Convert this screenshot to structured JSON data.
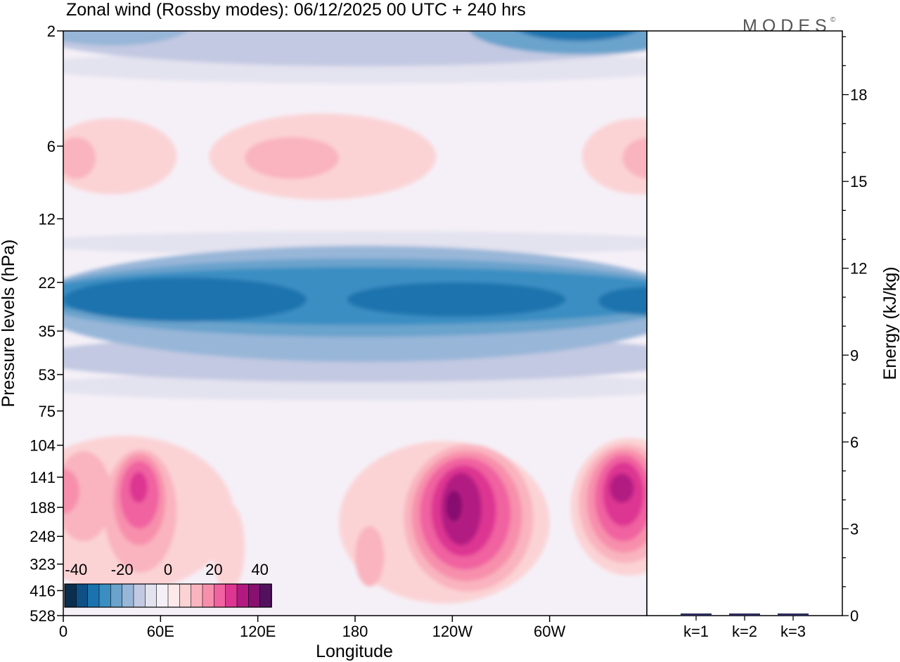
{
  "chart_data": {
    "type": "heatmap",
    "title": "Zonal wind (Rossby modes):  06/12/2025  00 UTC  + 240 hrs",
    "watermark": "MODES",
    "watermark_mark": "©",
    "xlabel": "Longitude",
    "ylabel": "Pressure levels (hPa)",
    "y2label": "Energy (kJ/kg)",
    "x_ticks": [
      "0",
      "60E",
      "120E",
      "180",
      "120W",
      "60W"
    ],
    "x_tick_deg": [
      0,
      60,
      120,
      180,
      240,
      300
    ],
    "x_range_deg": [
      0,
      360
    ],
    "y_ticks": [
      "2",
      "6",
      "12",
      "22",
      "35",
      "53",
      "75",
      "104",
      "141",
      "188",
      "248",
      "323",
      "416",
      "528"
    ],
    "y_scale": "log",
    "y_range_hPa": [
      2,
      528
    ],
    "y2_ticks": [
      "0",
      "3",
      "6",
      "9",
      "12",
      "15",
      "18"
    ],
    "y2_values": [
      0,
      3,
      6,
      9,
      12,
      15,
      18
    ],
    "y2_range": [
      0,
      20.2
    ],
    "energy_bars": {
      "categories": [
        "k=1",
        "k=2",
        "k=3"
      ],
      "values": [
        0.05,
        0.05,
        0.05
      ]
    },
    "colorbar": {
      "tick_labels": [
        "-40",
        "-20",
        "0",
        "20",
        "40"
      ],
      "tick_values": [
        -40,
        -20,
        0,
        20,
        40
      ],
      "levels": [
        -45,
        -40,
        -35,
        -30,
        -25,
        -20,
        -15,
        -10,
        -5,
        0,
        5,
        10,
        15,
        20,
        25,
        30,
        35,
        40,
        45
      ],
      "colors": [
        "#0b2e4f",
        "#0e4f86",
        "#1a73ae",
        "#3a8ec2",
        "#6aa3cc",
        "#98b6d8",
        "#c3c9e2",
        "#e3e2ef",
        "#f5f0f7",
        "#fde9ea",
        "#fbd3d5",
        "#f9b4bf",
        "#f78fac",
        "#f062a0",
        "#dd3592",
        "#b21a82",
        "#871070",
        "#53105f"
      ]
    },
    "fields": [
      {
        "lon": [
          -20,
          390
        ],
        "p": [
          1.5,
          2.8
        ],
        "value": -15
      },
      {
        "lon": [
          -20,
          80
        ],
        "p": [
          1.5,
          2.3
        ],
        "value": -20
      },
      {
        "lon": [
          250,
          390
        ],
        "p": [
          1.5,
          2.5
        ],
        "value": -25
      },
      {
        "lon": [
          275,
          360
        ],
        "p": [
          1.5,
          2.2
        ],
        "value": -35
      },
      {
        "lon": [
          -20,
          390
        ],
        "p": [
          2.4,
          3.3
        ],
        "value": -10
      },
      {
        "lon": [
          -20,
          390
        ],
        "p": [
          2.8,
          4.2
        ],
        "value": -5
      },
      {
        "lon": [
          -10,
          70
        ],
        "p": [
          4.6,
          9.5
        ],
        "value": 5
      },
      {
        "lon": [
          -4,
          20
        ],
        "p": [
          5.5,
          8.2
        ],
        "value": 10
      },
      {
        "lon": [
          90,
          230
        ],
        "p": [
          4.4,
          10
        ],
        "value": 5
      },
      {
        "lon": [
          112,
          170
        ],
        "p": [
          5.5,
          8.2
        ],
        "value": 10
      },
      {
        "lon": [
          320,
          390
        ],
        "p": [
          4.6,
          9.5
        ],
        "value": 5
      },
      {
        "lon": [
          345,
          380
        ],
        "p": [
          5.5,
          8.2
        ],
        "value": 10
      },
      {
        "lon": [
          -20,
          390
        ],
        "p": [
          11,
          14.5
        ],
        "value": -5
      },
      {
        "lon": [
          -20,
          390
        ],
        "p": [
          13.5,
          17
        ],
        "value": -10
      },
      {
        "lon": [
          -20,
          390
        ],
        "p": [
          15.5,
          47
        ],
        "value": -20
      },
      {
        "lon": [
          -20,
          390
        ],
        "p": [
          17.5,
          37
        ],
        "value": -25
      },
      {
        "lon": [
          -20,
          390
        ],
        "p": [
          19,
          33
        ],
        "value": -30
      },
      {
        "lon": [
          0,
          150
        ],
        "p": [
          21,
          32
        ],
        "value": -35
      },
      {
        "lon": [
          175,
          310
        ],
        "p": [
          22,
          30.5
        ],
        "value": -35
      },
      {
        "lon": [
          330,
          390
        ],
        "p": [
          23,
          30
        ],
        "value": -35
      },
      {
        "lon": [
          -20,
          390
        ],
        "p": [
          36,
          57
        ],
        "value": -15
      },
      {
        "lon": [
          -20,
          390
        ],
        "p": [
          52,
          68
        ],
        "value": -10
      },
      {
        "lon": [
          -20,
          65
        ],
        "p": [
          60,
          112
        ],
        "value": -5
      },
      {
        "lon": [
          110,
          200
        ],
        "p": [
          60,
          100
        ],
        "value": -5
      },
      {
        "lon": [
          250,
          310
        ],
        "p": [
          62,
          150
        ],
        "value": -5
      },
      {
        "lon": [
          -30,
          105
        ],
        "p": [
          95,
          420
        ],
        "value": 5
      },
      {
        "lon": [
          -5,
          30
        ],
        "p": [
          110,
          260
        ],
        "value": 10
      },
      {
        "lon": [
          -10,
          10
        ],
        "p": [
          130,
          200
        ],
        "value": 15
      },
      {
        "lon": [
          25,
          70
        ],
        "p": [
          108,
          350
        ],
        "value": 10
      },
      {
        "lon": [
          31,
          63
        ],
        "p": [
          113,
          270
        ],
        "value": 15
      },
      {
        "lon": [
          35,
          59
        ],
        "p": [
          121,
          230
        ],
        "value": 20
      },
      {
        "lon": [
          41,
          52
        ],
        "p": [
          134,
          180
        ],
        "value": 25
      },
      {
        "lon": [
          92,
          112
        ],
        "p": [
          180,
          420
        ],
        "value": 5
      },
      {
        "lon": [
          170,
          300
        ],
        "p": [
          100,
          470
        ],
        "value": 5
      },
      {
        "lon": [
          180,
          198
        ],
        "p": [
          225,
          400
        ],
        "value": 10
      },
      {
        "lon": [
          210,
          290
        ],
        "p": [
          103,
          420
        ],
        "value": 10
      },
      {
        "lon": [
          215,
          283
        ],
        "p": [
          110,
          380
        ],
        "value": 15
      },
      {
        "lon": [
          220,
          276
        ],
        "p": [
          117,
          340
        ],
        "value": 20
      },
      {
        "lon": [
          227,
          267
        ],
        "p": [
          126,
          300
        ],
        "value": 25
      },
      {
        "lon": [
          233,
          258
        ],
        "p": [
          135,
          270
        ],
        "value": 30
      },
      {
        "lon": [
          236,
          246
        ],
        "p": [
          160,
          215
        ],
        "value": 35
      },
      {
        "lon": [
          313,
          385
        ],
        "p": [
          97,
          360
        ],
        "value": 5
      },
      {
        "lon": [
          318,
          376
        ],
        "p": [
          103,
          320
        ],
        "value": 10
      },
      {
        "lon": [
          323,
          369
        ],
        "p": [
          108,
          290
        ],
        "value": 15
      },
      {
        "lon": [
          328,
          363
        ],
        "p": [
          114,
          260
        ],
        "value": 20
      },
      {
        "lon": [
          333,
          358
        ],
        "p": [
          122,
          225
        ],
        "value": 25
      },
      {
        "lon": [
          337,
          352
        ],
        "p": [
          136,
          180
        ],
        "value": 30
      }
    ]
  }
}
